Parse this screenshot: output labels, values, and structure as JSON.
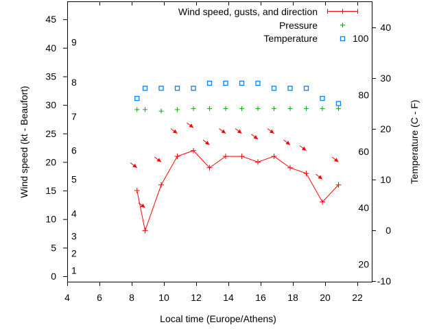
{
  "chart_data": {
    "type": "line",
    "xlabel": "Local time (Europe/Athens)",
    "ylabel": "Wind speed (kt - Beaufort)",
    "y2label": "Temperature (C - F)",
    "xlim": [
      4,
      23
    ],
    "ylim": [
      -1,
      48
    ],
    "y2lim": [
      -10,
      45
    ],
    "grid": false,
    "legend_position": "top-right",
    "x_ticks": [
      4,
      6,
      8,
      10,
      12,
      14,
      16,
      18,
      20,
      22
    ],
    "y_ticks": [
      0,
      5,
      10,
      15,
      20,
      25,
      30,
      35,
      40,
      45
    ],
    "y2_ticks": [
      -10,
      0,
      10,
      20,
      30,
      40
    ],
    "beaufort_labels": [
      {
        "label": "1",
        "kt": 1
      },
      {
        "label": "2",
        "kt": 4
      },
      {
        "label": "3",
        "kt": 7
      },
      {
        "label": "4",
        "kt": 11
      },
      {
        "label": "5",
        "kt": 17
      },
      {
        "label": "6",
        "kt": 22
      },
      {
        "label": "7",
        "kt": 28
      },
      {
        "label": "8",
        "kt": 34
      },
      {
        "label": "9",
        "kt": 41
      }
    ],
    "fahrenheit_labels": [
      {
        "label": "20",
        "F": 20
      },
      {
        "label": "40",
        "F": 40
      },
      {
        "label": "60",
        "F": 60
      },
      {
        "label": "80",
        "F": 80
      },
      {
        "label": "100",
        "F": 100
      }
    ],
    "x": [
      8.33,
      8.83,
      9.83,
      10.83,
      11.83,
      12.83,
      13.83,
      14.83,
      15.83,
      16.83,
      17.83,
      18.83,
      19.83,
      20.83
    ],
    "series": [
      {
        "name": "Wind speed, gusts, and direction",
        "color": "#ff0000",
        "values": [
          15,
          8,
          16,
          21,
          22,
          19,
          21,
          21,
          20,
          21,
          19,
          18,
          13,
          16
        ],
        "gusts": [
          19,
          12,
          20,
          25,
          26,
          23,
          25,
          25,
          24,
          25,
          23,
          22,
          17,
          20
        ],
        "direction_deg": [
          300,
          300,
          305,
          310,
          315,
          310,
          320,
          315,
          310,
          315,
          305,
          305,
          300,
          300
        ]
      },
      {
        "name": "Pressure",
        "color": "#00aa00",
        "axis": "y2",
        "values": [
          23.8,
          23.8,
          23.5,
          23.8,
          24.0,
          24.0,
          24.0,
          24.0,
          24.0,
          24.0,
          24.0,
          24.0,
          24.0,
          24.0
        ]
      },
      {
        "name": "Temperature",
        "color": "#0080ff",
        "axis": "y2",
        "values": [
          26,
          28,
          28,
          28,
          28,
          29,
          29,
          29,
          29,
          28,
          28,
          28,
          26,
          25
        ]
      }
    ]
  }
}
